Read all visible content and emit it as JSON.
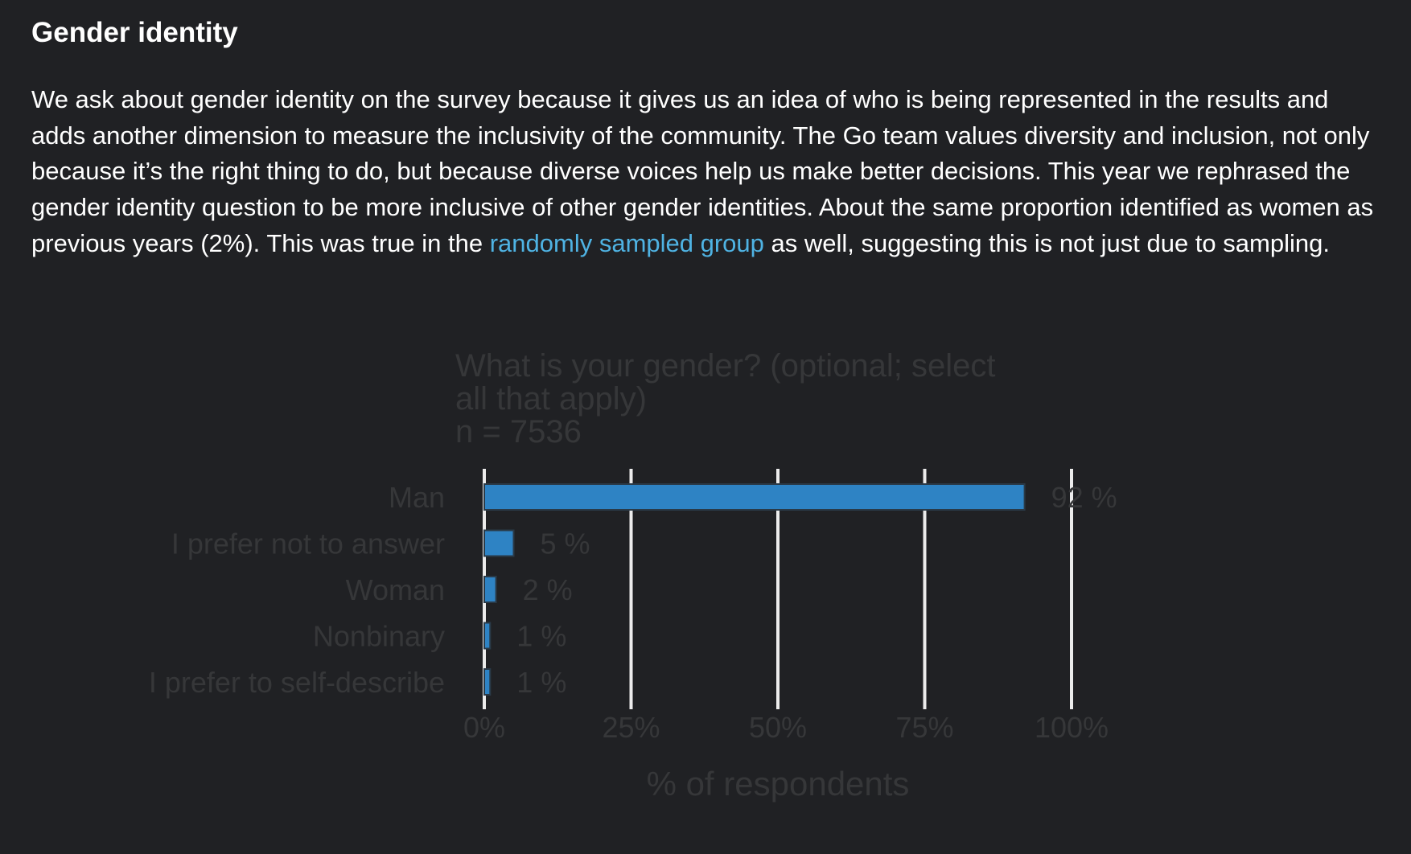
{
  "section": {
    "title": "Gender identity",
    "paragraph_before_link": "We ask about gender identity on the survey because it gives us an idea of who is being represented in the results and adds another dimension to measure the inclusivity of the community. The Go team values diversity and inclusion, not only because it’s the right thing to do, but because diverse voices help us make better decisions. This year we rephrased the gender identity question to be more inclusive of other gender identities. About the same proportion identified as women as previous years (2%). This was true in the ",
    "link_text": "randomly sampled group",
    "paragraph_after_link": " as well, suggesting this is not just due to sampling."
  },
  "colors": {
    "background": "#202124",
    "text": "#ffffff",
    "link": "#4fb3e3",
    "bar": "#2e83c4",
    "bar_stroke": "#2a3a48",
    "chart_text": "#363739",
    "gridline": "#ececec"
  },
  "chart_data": {
    "type": "bar",
    "orientation": "horizontal",
    "title_lines": [
      "What is your gender? (optional; select",
      "all that apply)",
      "n =  7536"
    ],
    "categories": [
      "Man",
      "I prefer not to answer",
      "Woman",
      "Nonbinary",
      "I prefer to self-describe"
    ],
    "values": [
      92,
      5,
      2,
      1,
      1
    ],
    "value_labels": [
      "92 %",
      "5 %",
      "2 %",
      "1 %",
      "1 %"
    ],
    "xlim": [
      0,
      100
    ],
    "x_ticks": [
      0,
      25,
      50,
      75,
      100
    ],
    "x_tick_labels": [
      "0%",
      "25%",
      "50%",
      "75%",
      "100%"
    ],
    "xlabel": "% of respondents",
    "grid": "vertical"
  }
}
